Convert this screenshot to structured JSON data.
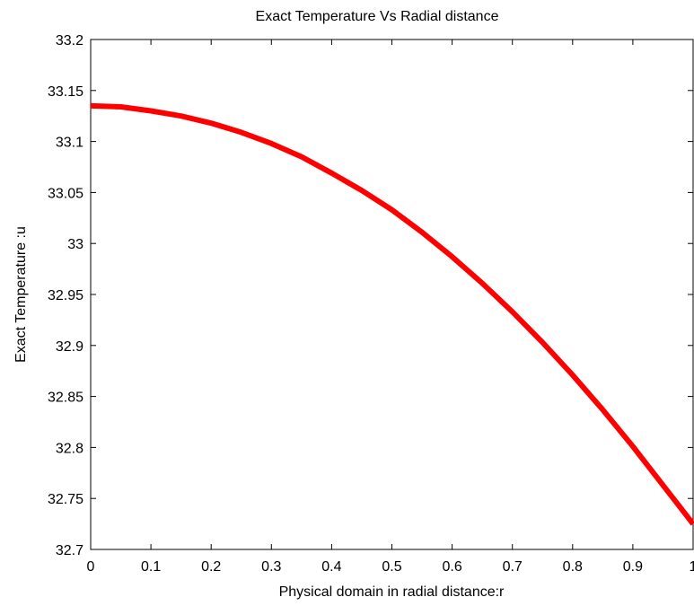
{
  "chart_data": {
    "type": "line",
    "title": "Exact Temperature Vs Radial distance",
    "xlabel": "Physical domain in radial distance:r",
    "ylabel": "Exact Temperature :u",
    "xlim": [
      0,
      1
    ],
    "ylim": [
      32.7,
      33.2
    ],
    "x_ticks": [
      0,
      0.1,
      0.2,
      0.3,
      0.4,
      0.5,
      0.6,
      0.7,
      0.8,
      0.9,
      1
    ],
    "x_tick_labels": [
      "0",
      "0.1",
      "0.2",
      "0.3",
      "0.4",
      "0.5",
      "0.6",
      "0.7",
      "0.8",
      "0.9",
      "1"
    ],
    "y_ticks": [
      32.7,
      32.75,
      32.8,
      32.85,
      32.9,
      32.95,
      33,
      33.05,
      33.1,
      33.15,
      33.2
    ],
    "y_tick_labels": [
      "32.7",
      "32.75",
      "32.8",
      "32.85",
      "32.9",
      "32.95",
      "33",
      "33.05",
      "33.1",
      "33.15",
      "33.2"
    ],
    "grid": false,
    "series": [
      {
        "color": "#ff0000",
        "x": [
          0,
          0.05,
          0.1,
          0.15,
          0.2,
          0.25,
          0.3,
          0.35,
          0.4,
          0.45,
          0.5,
          0.55,
          0.6,
          0.65,
          0.7,
          0.75,
          0.8,
          0.85,
          0.9,
          0.95,
          1
        ],
        "y": [
          33.135,
          33.134,
          33.13,
          33.125,
          33.118,
          33.109,
          33.098,
          33.085,
          33.069,
          33.052,
          33.033,
          33.011,
          32.987,
          32.961,
          32.933,
          32.903,
          32.871,
          32.837,
          32.801,
          32.763,
          32.725
        ]
      }
    ]
  }
}
